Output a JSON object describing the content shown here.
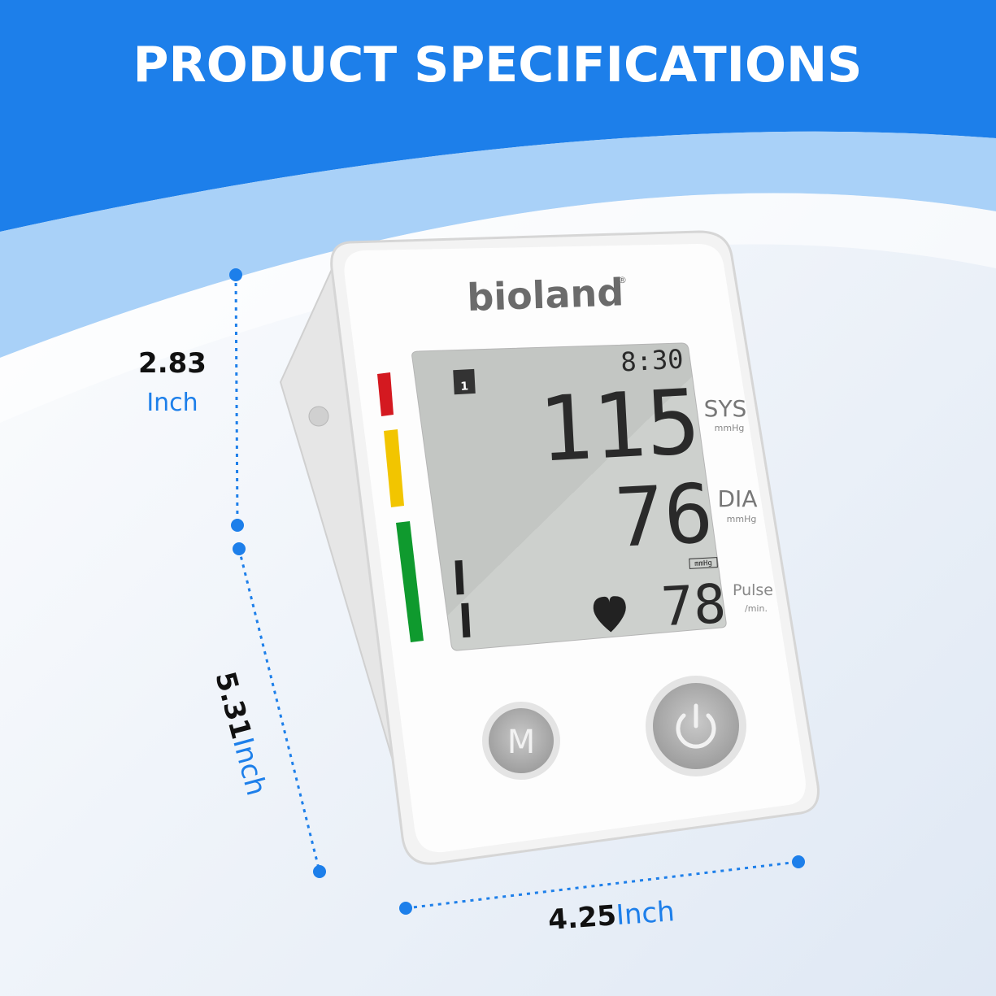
{
  "header": {
    "title": "PRODUCT SPECIFICATIONS"
  },
  "device": {
    "brand": "bioland",
    "brand_mark": "®",
    "display": {
      "time": "8:30",
      "user": "1",
      "sys_value": "115",
      "sys_label": "SYS",
      "sys_unit": "mmHg",
      "dia_value": "76",
      "dia_label": "DIA",
      "dia_unit": "mmHg",
      "pulse_box_unit": "mmHg",
      "pulse_value": "78",
      "pulse_label": "Pulse",
      "pulse_unit": "/min."
    },
    "buttons": {
      "memory": "M"
    }
  },
  "dimensions": {
    "height_small": {
      "value": "2.83",
      "unit": "Inch"
    },
    "height": {
      "value": "5.31",
      "unit": "Inch"
    },
    "width": {
      "value": "4.25",
      "unit": "Inch"
    }
  }
}
